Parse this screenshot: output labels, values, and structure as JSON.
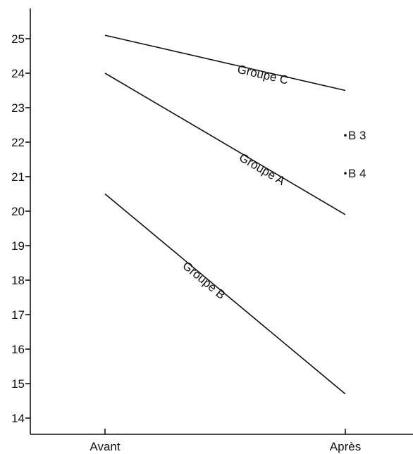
{
  "chart_data": {
    "type": "line",
    "categories": [
      "Avant",
      "Après"
    ],
    "yticks": [
      14,
      15,
      16,
      17,
      18,
      19,
      20,
      21,
      22,
      23,
      24,
      25
    ],
    "ylim": [
      13.6,
      25.8
    ],
    "grid": false,
    "series": [
      {
        "name": "Groupe C",
        "values": [
          25.1,
          23.5
        ]
      },
      {
        "name": "Groupe A",
        "values": [
          24.0,
          19.9
        ]
      },
      {
        "name": "Groupe B",
        "values": [
          20.5,
          14.7
        ]
      }
    ],
    "points": [
      {
        "name": "B 3",
        "x": "Après",
        "y": 22.2
      },
      {
        "name": "B 4",
        "x": "Après",
        "y": 21.1
      }
    ],
    "title": "",
    "xlabel": "",
    "ylabel": ""
  }
}
